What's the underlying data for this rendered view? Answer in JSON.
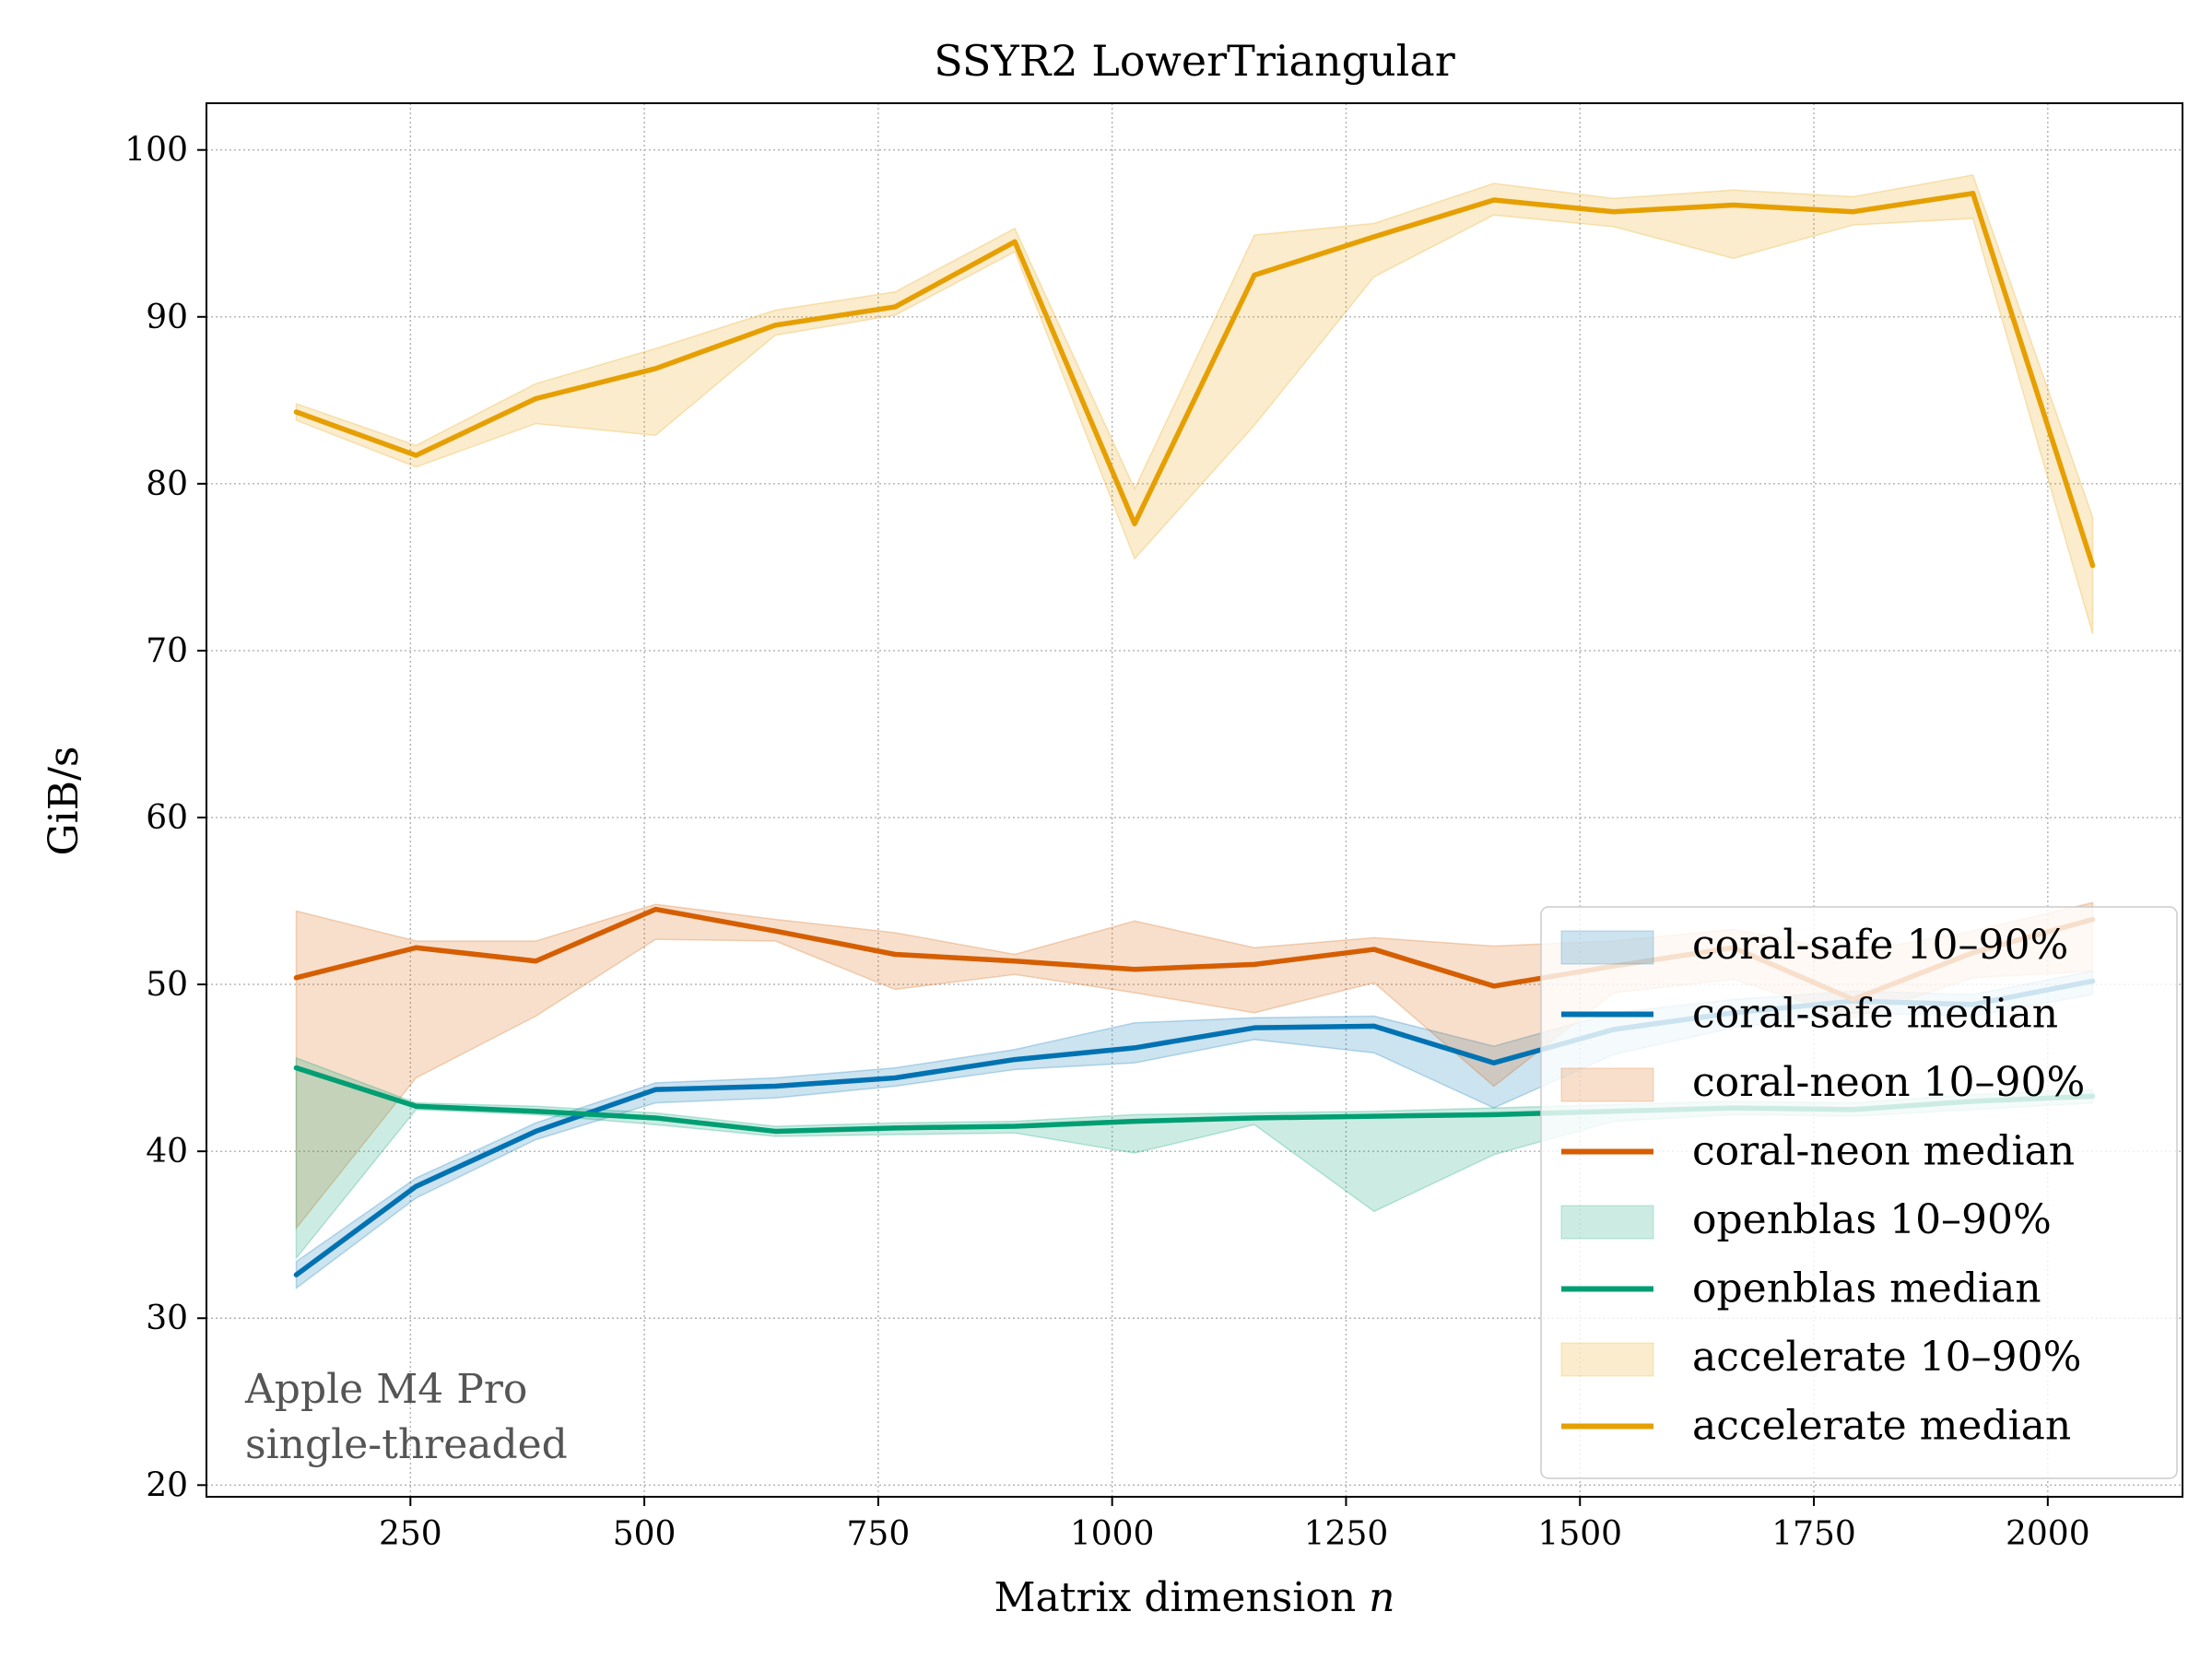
{
  "chart_data": {
    "type": "line",
    "title": "SSYR2 LowerTriangular",
    "xlabel": "Matrix dimension ",
    "xlabel_var": "n",
    "ylabel": "GiB/s",
    "xlim": [
      32,
      2144
    ],
    "ylim": [
      19.3,
      102.8
    ],
    "xticks": [
      250,
      500,
      750,
      1000,
      1250,
      1500,
      1750,
      2000
    ],
    "xtick_labels": [
      "250",
      "500",
      "750",
      "1000",
      "1250",
      "1500",
      "1750",
      "2000"
    ],
    "yticks": [
      20,
      30,
      40,
      50,
      60,
      70,
      80,
      90,
      100
    ],
    "ytick_labels": [
      "20",
      "30",
      "40",
      "50",
      "60",
      "70",
      "80",
      "90",
      "100"
    ],
    "grid": true,
    "legend_position": "lower-right",
    "annotation": [
      "Apple M4 Pro",
      "single-threaded"
    ],
    "x": [
      128,
      256,
      384,
      512,
      640,
      768,
      896,
      1024,
      1152,
      1280,
      1408,
      1536,
      1664,
      1792,
      1920,
      2048
    ],
    "series": [
      {
        "name": "coral-safe",
        "color": "#0072b2",
        "band_label": "coral-safe 10–90%",
        "median_label": "coral-safe median",
        "median": [
          32.6,
          37.9,
          41.2,
          43.7,
          43.9,
          44.4,
          45.5,
          46.2,
          47.4,
          47.5,
          45.3,
          47.3,
          48.3,
          49.0,
          48.8,
          50.2
        ],
        "p10": [
          31.8,
          37.2,
          40.7,
          42.9,
          43.2,
          43.9,
          44.9,
          45.3,
          46.7,
          45.9,
          42.6,
          45.8,
          47.4,
          48.3,
          48.1,
          49.4
        ],
        "p90": [
          33.4,
          38.4,
          41.7,
          44.1,
          44.4,
          45.0,
          46.1,
          47.7,
          48.0,
          48.1,
          46.3,
          48.3,
          49.1,
          49.6,
          49.4,
          50.8
        ]
      },
      {
        "name": "coral-neon",
        "color": "#d55e00",
        "band_label": "coral-neon 10–90%",
        "median_label": "coral-neon median",
        "median": [
          50.4,
          52.2,
          51.4,
          54.5,
          53.2,
          51.8,
          51.4,
          50.9,
          51.2,
          52.1,
          49.9,
          51.1,
          52.2,
          49.1,
          51.9,
          53.9
        ],
        "p10": [
          35.4,
          44.4,
          48.1,
          52.7,
          52.6,
          49.7,
          50.6,
          49.5,
          48.3,
          50.1,
          43.9,
          49.5,
          50.3,
          48.0,
          50.4,
          50.8
        ],
        "p90": [
          54.4,
          52.6,
          52.6,
          54.8,
          53.9,
          53.1,
          51.8,
          53.8,
          52.2,
          52.8,
          52.3,
          52.6,
          53.3,
          51.9,
          53.2,
          54.9
        ]
      },
      {
        "name": "openblas",
        "color": "#009e73",
        "band_label": "openblas 10–90%",
        "median_label": "openblas median",
        "median": [
          45.0,
          42.7,
          42.4,
          42.0,
          41.2,
          41.4,
          41.5,
          41.8,
          42.0,
          42.1,
          42.2,
          42.4,
          42.6,
          42.5,
          43.0,
          43.3
        ],
        "p10": [
          33.6,
          42.5,
          42.2,
          41.6,
          40.9,
          41.0,
          41.1,
          39.9,
          41.6,
          36.4,
          39.8,
          41.8,
          42.2,
          42.1,
          42.5,
          42.9
        ],
        "p90": [
          45.6,
          42.9,
          42.7,
          42.3,
          41.5,
          41.7,
          41.8,
          42.2,
          42.3,
          42.4,
          42.6,
          42.8,
          43.0,
          42.9,
          43.4,
          43.7
        ]
      },
      {
        "name": "accelerate",
        "color": "#e69f00",
        "band_label": "accelerate 10–90%",
        "median_label": "accelerate median",
        "median": [
          84.3,
          81.7,
          85.1,
          86.9,
          89.5,
          90.6,
          94.5,
          77.6,
          92.5,
          94.8,
          97.0,
          96.3,
          96.7,
          96.3,
          97.4,
          75.1
        ],
        "p10": [
          83.8,
          81.0,
          83.6,
          82.9,
          88.9,
          90.1,
          93.9,
          75.5,
          83.5,
          92.4,
          96.1,
          95.4,
          93.5,
          95.5,
          95.9,
          71.0
        ],
        "p90": [
          84.8,
          82.3,
          86.0,
          88.1,
          90.4,
          91.5,
          95.3,
          79.7,
          94.9,
          95.6,
          98.0,
          97.1,
          97.6,
          97.2,
          98.5,
          78.0
        ]
      }
    ]
  }
}
